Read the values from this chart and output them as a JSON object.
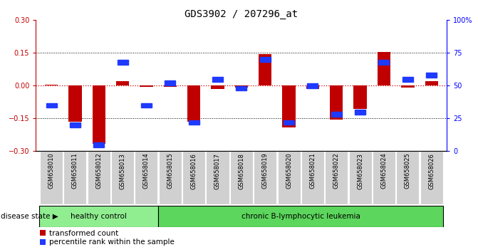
{
  "title": "GDS3902 / 207296_at",
  "samples": [
    "GSM658010",
    "GSM658011",
    "GSM658012",
    "GSM658013",
    "GSM658014",
    "GSM658015",
    "GSM658016",
    "GSM658017",
    "GSM658018",
    "GSM658019",
    "GSM658020",
    "GSM658021",
    "GSM658022",
    "GSM658023",
    "GSM658024",
    "GSM658025",
    "GSM658026"
  ],
  "red_values": [
    0.003,
    -0.165,
    -0.265,
    0.02,
    -0.005,
    -0.005,
    -0.165,
    -0.015,
    -0.01,
    0.145,
    -0.19,
    -0.015,
    -0.155,
    -0.105,
    0.155,
    -0.01,
    0.02
  ],
  "blue_values": [
    35,
    20,
    5,
    68,
    35,
    52,
    22,
    55,
    48,
    70,
    22,
    50,
    28,
    30,
    68,
    55,
    58
  ],
  "healthy_count": 5,
  "ylim_left": [
    -0.3,
    0.3
  ],
  "ylim_right": [
    0,
    100
  ],
  "yticks_left": [
    -0.3,
    -0.15,
    0,
    0.15,
    0.3
  ],
  "yticks_right": [
    0,
    25,
    50,
    75,
    100
  ],
  "ytick_labels_right": [
    "0",
    "25",
    "50",
    "75",
    "100%"
  ],
  "bar_color": "#c00000",
  "sq_color": "#1f3aff",
  "healthy_fill": "#90ee90",
  "leukemia_fill": "#5cd65c",
  "tick_bg_color": "#d0d0d0",
  "disease_label": "disease state",
  "healthy_label": "healthy control",
  "leukemia_label": "chronic B-lymphocytic leukemia",
  "legend_red": "transformed count",
  "legend_blue": "percentile rank within the sample",
  "zero_line_color": "#cc0000",
  "dot_line_color": "#000000",
  "title_fontsize": 10,
  "axis_fontsize": 7,
  "tick_fontsize": 6,
  "label_fontsize": 8
}
